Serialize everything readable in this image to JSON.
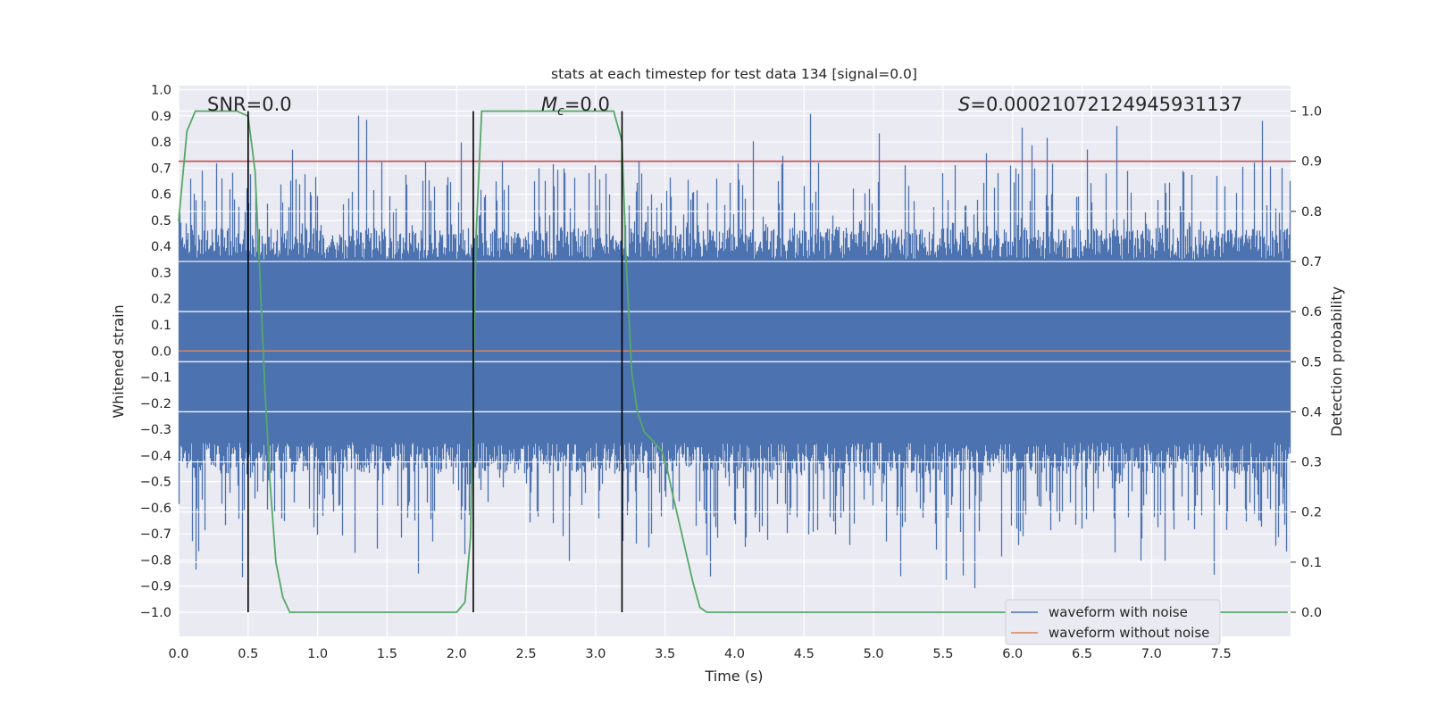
{
  "chart_data": {
    "type": "line",
    "title": "stats at each timestep for test data 134 [signal=0.0]",
    "xlabel": "Time (s)",
    "ylabel": "Whitened strain",
    "y2label": "Detection probability",
    "xlim": [
      0.0,
      8.0
    ],
    "ylim": [
      -1.0,
      1.0
    ],
    "y2lim": [
      0.0,
      1.0
    ],
    "x_ticks": [
      "0.0",
      "0.5",
      "1.0",
      "1.5",
      "2.0",
      "2.5",
      "3.0",
      "3.5",
      "4.0",
      "4.5",
      "5.0",
      "5.5",
      "6.0",
      "6.5",
      "7.0",
      "7.5"
    ],
    "y_ticks": [
      "1.0",
      "0.9",
      "0.8",
      "0.7",
      "0.6",
      "0.5",
      "0.4",
      "0.3",
      "0.2",
      "0.1",
      "0.0",
      "−0.1",
      "−0.2",
      "−0.3",
      "−0.4",
      "−0.5",
      "−0.6",
      "−0.7",
      "−0.8",
      "−0.9",
      "−1.0"
    ],
    "y2_ticks": [
      "1.0",
      "0.9",
      "0.8",
      "0.7",
      "0.6",
      "0.5",
      "0.4",
      "0.3",
      "0.2",
      "0.1",
      "0.0"
    ],
    "annotations": {
      "snr": "SNR=0.0",
      "mc_symbol": "M",
      "mc_sub": "c",
      "mc_value": "=0.0",
      "s_symbol": "S",
      "s_value": "=0.00021072124945931137"
    },
    "threshold_probability": 0.9,
    "vertical_lines_s": [
      0.5,
      2.12,
      3.19
    ],
    "series": [
      {
        "name": "waveform with noise",
        "color": "#4c72b0",
        "envelope_upper": 0.35,
        "envelope_lower": -0.35,
        "peak_max": 0.92,
        "peak_min": -1.0
      },
      {
        "name": "waveform without noise",
        "color": "#dd8452",
        "value": 0.0
      },
      {
        "name": "detection probability",
        "color": "#55a868",
        "axis": "y2",
        "x": [
          0.0,
          0.06,
          0.12,
          0.2,
          0.3,
          0.42,
          0.5,
          0.55,
          0.58,
          0.62,
          0.66,
          0.7,
          0.75,
          0.8,
          1.0,
          1.5,
          2.0,
          2.06,
          2.1,
          2.14,
          2.18,
          3.0,
          3.13,
          3.19,
          3.22,
          3.26,
          3.3,
          3.35,
          3.42,
          3.48,
          3.52,
          3.55,
          3.6,
          3.65,
          3.7,
          3.75,
          3.8,
          4.5,
          6.0,
          7.98
        ],
        "y": [
          0.78,
          0.96,
          1.0,
          1.0,
          1.0,
          1.0,
          0.99,
          0.88,
          0.7,
          0.45,
          0.25,
          0.1,
          0.03,
          0.0,
          0.0,
          0.0,
          0.0,
          0.02,
          0.15,
          0.75,
          1.0,
          1.0,
          1.0,
          0.94,
          0.7,
          0.48,
          0.4,
          0.36,
          0.34,
          0.32,
          0.28,
          0.24,
          0.18,
          0.12,
          0.06,
          0.01,
          0.0,
          0.0,
          0.0,
          0.0
        ]
      }
    ],
    "legend": {
      "position": "bottom-right",
      "entries": [
        "waveform with noise",
        "waveform without noise"
      ]
    }
  }
}
